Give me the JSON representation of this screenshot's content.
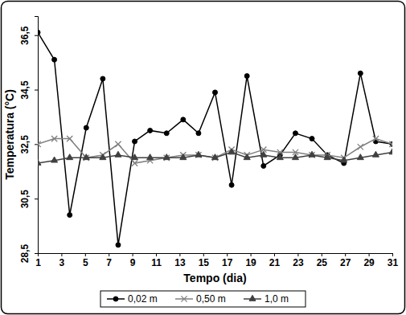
{
  "chart_data": {
    "type": "line",
    "x_label": "Tempo (dia)",
    "y_label": "Temperatura (°C)",
    "x": [
      1,
      2.4,
      3.7,
      5.1,
      6.5,
      7.8,
      9.2,
      10.5,
      11.9,
      13.3,
      14.6,
      16.0,
      17.4,
      18.7,
      20.1,
      21.5,
      22.8,
      24.2,
      25.5,
      26.9,
      28.3,
      29.6,
      31
    ],
    "series": [
      {
        "name": "0,02 m",
        "color": "#000000",
        "marker": "circle",
        "line_style": "solid",
        "values": [
          36.6,
          35.6,
          29.9,
          33.1,
          34.9,
          28.8,
          32.6,
          33.0,
          32.9,
          33.4,
          32.9,
          34.4,
          31.0,
          35.0,
          31.7,
          32.1,
          32.9,
          32.7,
          32.1,
          31.8,
          35.1,
          32.6,
          32.5
        ]
      },
      {
        "name": "0,50 m",
        "color": "#808080",
        "marker": "x",
        "line_style": "solid",
        "values": [
          32.5,
          32.7,
          32.7,
          32.0,
          32.1,
          32.5,
          31.8,
          31.9,
          32.0,
          32.1,
          32.1,
          32.0,
          32.3,
          32.1,
          32.3,
          32.2,
          32.2,
          32.1,
          32.1,
          32.0,
          32.4,
          32.7,
          32.5
        ]
      },
      {
        "name": "1,0 m",
        "color": "#404040",
        "marker": "triangle",
        "line_style": "solid",
        "values": [
          31.8,
          31.9,
          32.0,
          32.0,
          32.0,
          32.1,
          32.0,
          32.0,
          32.0,
          32.0,
          32.1,
          32.0,
          32.2,
          32.0,
          32.1,
          32.0,
          32.0,
          32.1,
          32.0,
          31.9,
          32.0,
          32.1,
          32.2
        ]
      }
    ],
    "xlim": [
      1,
      31
    ],
    "xticks": [
      1,
      3,
      5,
      7,
      9,
      11,
      13,
      15,
      17,
      19,
      21,
      23,
      25,
      27,
      29,
      31
    ],
    "ylim": [
      28.5,
      37.2
    ],
    "yticks": [
      {
        "value": 28.5,
        "label": "28,5"
      },
      {
        "value": 30.5,
        "label": "30,5"
      },
      {
        "value": 32.5,
        "label": "32,5"
      },
      {
        "value": 34.5,
        "label": "34,5"
      },
      {
        "value": 36.5,
        "label": "36,5"
      }
    ],
    "grid": false,
    "legend": "bottom"
  }
}
